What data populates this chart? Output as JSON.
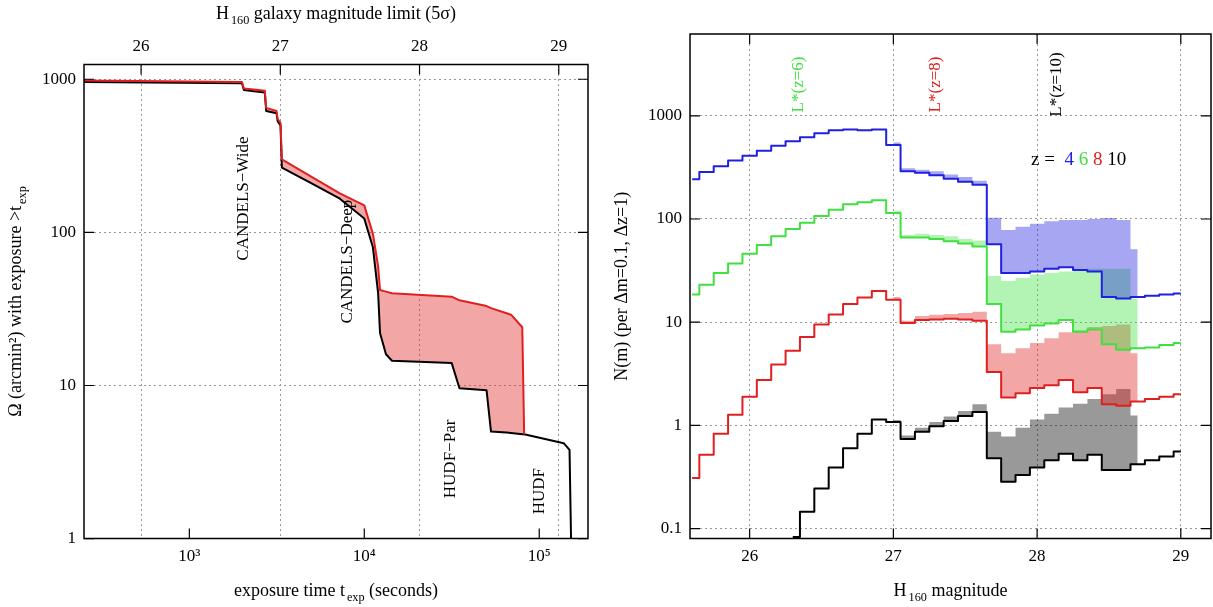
{
  "chart_data": [
    {
      "type": "line",
      "xlabel": "exposure time t$_{exp}$ (seconds)",
      "ylabel": "Ω (arcmin²) with exposure >t$_{exp}$",
      "x2label": "H$_{160}$ galaxy magnitude limit (5σ)",
      "x": [
        250,
        2000,
        2050,
        2700,
        2750,
        3150,
        3200,
        3320,
        3380,
        5000,
        7250,
        10000,
        11200,
        12000,
        12300,
        13300,
        14400,
        31600,
        35000,
        50000,
        53000,
        69000,
        80000,
        82000,
        138000,
        149000,
        152000
      ],
      "series": [
        {
          "color": "#e02020",
          "values": [
            980,
            960,
            870,
            840,
            650,
            620,
            550,
            520,
            300,
            230,
            180,
            150,
            98,
            60,
            42,
            41,
            40,
            38,
            36,
            33,
            32,
            29,
            24,
            4.8,
            null,
            null,
            null
          ],
          "lower": [
            960,
            940,
            850,
            820,
            620,
            600,
            530,
            500,
            265,
            209,
            166,
            123,
            80,
            40,
            22,
            16,
            14.5,
            14,
            9.6,
            9.3,
            5.0,
            4.9,
            4.8,
            4.8,
            null,
            null,
            null
          ],
          "upper": [
            980,
            960,
            870,
            840,
            650,
            620,
            550,
            520,
            300,
            230,
            180,
            150,
            98,
            60,
            42,
            41,
            40,
            38,
            36,
            33,
            32,
            29,
            24,
            4.8,
            null,
            null,
            null
          ]
        },
        {
          "color": "#000000",
          "values": [
            960,
            940,
            850,
            820,
            620,
            600,
            530,
            500,
            265,
            209,
            166,
            123,
            80,
            40,
            22,
            16,
            14.5,
            14,
            9.6,
            9.3,
            5.0,
            4.9,
            4.8,
            4.8,
            4.2,
            3.8,
            1
          ]
        }
      ],
      "log": "xy",
      "xlim": [
        250,
        190000
      ],
      "xticks": [
        {
          "value": 1000,
          "label": "10³"
        },
        {
          "value": 10000,
          "label": "10⁴"
        },
        {
          "value": 100000,
          "label": "10⁵"
        }
      ],
      "ylim": [
        1,
        1250
      ],
      "yticks": [
        1,
        10,
        100,
        1000
      ],
      "x2lim": [
        25.59,
        29.21
      ],
      "x2ticks": [
        26,
        27,
        28,
        29
      ],
      "grid": true,
      "annotations": [
        "CANDELS−Wide",
        "CANDELS−Deep",
        "HUDF−Par",
        "HUDF"
      ]
    },
    {
      "type": "step",
      "xlabel": "H$_{160}$ magnitude",
      "ylabel": "N(m) (per Δm=0.1, Δz=1)",
      "legend_title": "z =",
      "legend": "top right",
      "x": [
        25.6,
        25.7,
        25.8,
        25.9,
        26.0,
        26.1,
        26.2,
        26.3,
        26.4,
        26.5,
        26.6,
        26.7,
        26.8,
        26.9,
        27.0,
        27.1,
        27.2,
        27.3,
        27.4,
        27.5,
        27.6,
        27.7,
        27.8,
        27.9,
        28.0,
        28.1,
        28.2,
        28.3,
        28.4,
        28.5,
        28.6,
        28.7,
        28.8,
        28.9,
        29.0
      ],
      "series": [
        {
          "name": "4",
          "color": "#2020e0",
          "values": [
            243,
            285,
            324,
            369,
            410,
            458,
            513,
            568,
            619,
            676,
            725,
            735,
            725,
            735,
            520,
            290,
            280,
            265,
            245,
            230,
            215,
            57,
            30,
            30,
            31,
            33,
            34,
            32,
            31,
            17.5,
            17,
            17.5,
            18,
            18.5,
            19
          ],
          "lower": [
            null,
            null,
            null,
            null,
            null,
            null,
            null,
            null,
            null,
            null,
            null,
            null,
            null,
            null,
            520,
            290,
            280,
            265,
            245,
            230,
            215,
            57,
            30,
            30,
            31,
            33,
            34,
            32,
            31,
            17.5,
            17,
            17.5,
            null,
            null,
            null
          ],
          "upper": [
            null,
            null,
            null,
            null,
            null,
            null,
            null,
            null,
            null,
            null,
            null,
            null,
            null,
            null,
            550,
            310,
            300,
            290,
            270,
            255,
            235,
            103,
            78,
            84,
            90,
            95,
            98,
            98,
            100,
            102,
            98,
            51,
            null,
            null,
            null
          ]
        },
        {
          "name": "6",
          "color": "#40e040",
          "values": [
            18.5,
            23,
            30,
            37,
            46,
            56,
            68,
            80,
            92,
            107,
            123,
            139,
            145,
            152,
            114,
            66,
            66,
            64,
            61,
            58,
            54,
            15,
            8.1,
            8.5,
            9.3,
            9.7,
            10.5,
            8.1,
            8.5,
            6.1,
            5.4,
            5.6,
            5.7,
            6.0,
            6.3
          ],
          "lower": [
            null,
            null,
            null,
            null,
            null,
            null,
            null,
            null,
            null,
            null,
            null,
            null,
            null,
            null,
            114,
            66,
            66,
            64,
            61,
            58,
            54,
            15,
            8.1,
            8.5,
            9.3,
            9.7,
            10.5,
            8.1,
            8.5,
            6.1,
            5.4,
            5.6,
            null,
            null,
            null
          ],
          "upper": [
            null,
            null,
            null,
            null,
            null,
            null,
            null,
            null,
            null,
            null,
            null,
            null,
            null,
            null,
            120,
            70,
            72,
            70,
            68,
            64,
            62,
            28,
            25,
            27,
            29,
            30,
            31,
            32,
            33,
            33,
            33,
            17,
            null,
            null,
            null
          ]
        },
        {
          "name": "8",
          "color": "#e02020",
          "values": [
            0.31,
            0.52,
            0.83,
            1.27,
            1.9,
            2.75,
            3.9,
            5.3,
            7.2,
            9.5,
            11.9,
            15,
            17.3,
            20,
            16.5,
            9.8,
            10.5,
            10.6,
            10.8,
            10.6,
            10.3,
            3.3,
            1.86,
            2.05,
            2.3,
            2.45,
            2.75,
            2.1,
            2.3,
            1.6,
            1.55,
            1.7,
            1.8,
            1.9,
            2.0
          ],
          "lower": [
            null,
            null,
            null,
            null,
            null,
            null,
            null,
            null,
            null,
            null,
            null,
            null,
            null,
            null,
            16.5,
            9.8,
            10.5,
            10.6,
            10.8,
            10.6,
            10.3,
            3.3,
            1.86,
            2.05,
            2.3,
            2.45,
            2.75,
            2.1,
            2.3,
            1.6,
            1.55,
            1.7,
            null,
            null,
            null
          ],
          "upper": [
            null,
            null,
            null,
            null,
            null,
            null,
            null,
            null,
            null,
            null,
            null,
            null,
            null,
            null,
            17.5,
            10.3,
            11.5,
            11.8,
            12.0,
            12.3,
            12.6,
            6.1,
            5.0,
            5.6,
            6.3,
            7.0,
            8.0,
            8.3,
            9.0,
            9.2,
            9.5,
            5.0,
            null,
            null,
            null
          ]
        },
        {
          "name": "10",
          "color": "#000000",
          "values": [
            null,
            null,
            null,
            null,
            null,
            null,
            null,
            0.083,
            0.146,
            0.245,
            0.39,
            0.6,
            0.83,
            1.14,
            1.08,
            0.74,
            0.87,
            0.98,
            1.1,
            1.23,
            1.35,
            0.48,
            0.285,
            0.33,
            0.39,
            0.46,
            0.53,
            0.46,
            0.52,
            0.37,
            0.37,
            0.42,
            0.46,
            0.5,
            0.56
          ],
          "lower": [
            null,
            null,
            null,
            null,
            null,
            null,
            null,
            null,
            null,
            null,
            null,
            null,
            null,
            null,
            1.08,
            0.74,
            0.87,
            0.98,
            1.1,
            1.23,
            1.35,
            0.48,
            0.285,
            0.33,
            0.39,
            0.46,
            0.53,
            0.46,
            0.52,
            0.37,
            0.37,
            0.42,
            null,
            null,
            null
          ],
          "upper": [
            null,
            null,
            null,
            null,
            null,
            null,
            null,
            null,
            null,
            null,
            null,
            null,
            null,
            null,
            1.13,
            0.8,
            0.95,
            1.08,
            1.22,
            1.38,
            1.6,
            0.87,
            0.78,
            0.95,
            1.14,
            1.3,
            1.49,
            1.62,
            1.8,
            2.0,
            2.25,
            1.25,
            null,
            null,
            null
          ]
        }
      ],
      "log": "y",
      "xlim": [
        25.585,
        29.21
      ],
      "xticks": [
        26,
        27,
        28,
        29
      ],
      "ylim": [
        0.08,
        6200
      ],
      "yticks": [
        0.1,
        1,
        10,
        100,
        1000
      ],
      "grid": true,
      "annotations": [
        "L*(z=6)",
        "L*(z=8)",
        "L*(z=10)"
      ]
    }
  ]
}
